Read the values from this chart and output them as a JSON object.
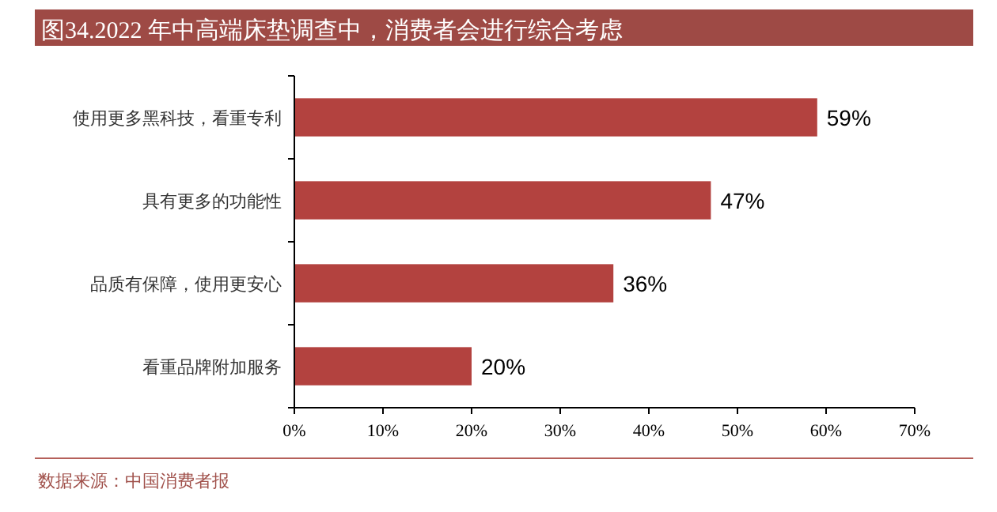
{
  "chart_data": {
    "type": "bar",
    "orientation": "horizontal",
    "title": "图34.2022 年中高端床垫调查中，消费者会进行综合考虑",
    "categories": [
      "使用更多黑科技，看重专利",
      "具有更多的功能性",
      "品质有保障，使用更安心",
      "看重品牌附加服务"
    ],
    "values": [
      59,
      47,
      36,
      20
    ],
    "value_labels": [
      "59%",
      "47%",
      "36%",
      "20%"
    ],
    "color": "#b3423f",
    "xlim": [
      0,
      70
    ],
    "xticks": [
      {
        "value": 0,
        "label": "0%"
      },
      {
        "value": 10,
        "label": "10%"
      },
      {
        "value": 20,
        "label": "20%"
      },
      {
        "value": 30,
        "label": "30%"
      },
      {
        "value": 40,
        "label": "40%"
      },
      {
        "value": 50,
        "label": "50%"
      },
      {
        "value": 60,
        "label": "60%"
      },
      {
        "value": 70,
        "label": "70%"
      }
    ],
    "grid": false,
    "annotations": [
      "数据来源：中国消费者报"
    ]
  }
}
